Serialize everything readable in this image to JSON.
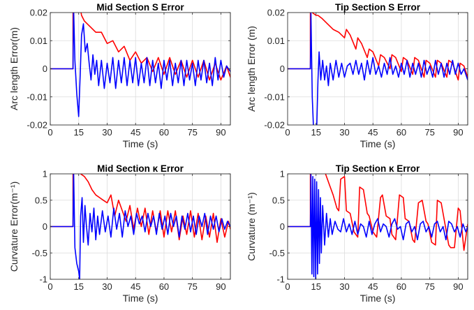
{
  "chart_data": [
    {
      "type": "line",
      "title": "Mid Section S Error",
      "xlabel": "Time (s)",
      "ylabel": "Arc length Error(m)",
      "xlim": [
        0,
        95
      ],
      "ylim": [
        -0.02,
        0.02
      ],
      "xticks": [
        0,
        15,
        30,
        45,
        60,
        75,
        90
      ],
      "yticks": [
        -0.02,
        -0.01,
        0,
        0.01,
        0.02
      ],
      "xtick_labels": [
        "0",
        "15",
        "30",
        "45",
        "60",
        "75",
        "90"
      ],
      "ytick_labels": [
        "-0.02",
        "-0.01",
        "0",
        "0.01",
        "0.02"
      ],
      "grid": true,
      "series": [
        {
          "color": "#ff0000",
          "x": [
            0,
            12,
            12,
            15,
            16.5,
            18,
            21,
            24,
            27,
            30,
            33,
            36,
            39,
            42,
            45,
            48,
            51,
            54,
            57,
            60,
            63,
            66,
            69,
            72,
            75,
            78,
            81,
            84,
            87,
            90,
            93,
            95
          ],
          "y": [
            0,
            0,
            0.03,
            0.025,
            0.019,
            0.017,
            0.015,
            0.013,
            0.013,
            0.009,
            0.01,
            0.006,
            0.008,
            0.003,
            0.006,
            0.002,
            0.004,
            -0.001,
            0.004,
            -0.002,
            0.004,
            -0.002,
            0.003,
            -0.003,
            0.003,
            -0.003,
            0.003,
            -0.004,
            0.002,
            -0.004,
            0.001,
            -0.003
          ]
        },
        {
          "color": "#0000ff",
          "x": [
            0,
            12,
            12.3,
            13,
            14,
            15,
            15.8,
            16.5,
            17.5,
            18.5,
            19.5,
            20.5,
            21.5,
            22.5,
            23.5,
            24.5,
            25.5,
            27,
            28.5,
            30,
            31.5,
            33,
            34.5,
            36,
            37.5,
            39,
            40.5,
            42,
            43.5,
            45,
            46.5,
            48,
            49.5,
            51,
            52.5,
            54,
            55.5,
            57,
            58.5,
            60,
            61.5,
            63,
            64.5,
            66,
            67.5,
            69,
            70.5,
            72,
            73.5,
            75,
            76.5,
            78,
            79.5,
            81,
            82.5,
            84,
            85.5,
            87,
            88.5,
            90,
            91.5,
            93,
            95
          ],
          "y": [
            0,
            0,
            0.022,
            0.003,
            -0.009,
            -0.017,
            -0.002,
            0.012,
            0.016,
            0.006,
            0.009,
            0.002,
            -0.004,
            0.005,
            -0.002,
            0.003,
            -0.006,
            0.003,
            -0.007,
            0.002,
            -0.005,
            0.004,
            -0.007,
            0.003,
            -0.005,
            0.004,
            -0.006,
            0.003,
            -0.005,
            0.004,
            -0.006,
            0.002,
            -0.005,
            0.004,
            -0.006,
            0.003,
            -0.005,
            0.002,
            -0.007,
            0.003,
            -0.004,
            0.003,
            -0.006,
            0.002,
            -0.005,
            0.003,
            -0.006,
            0.003,
            -0.004,
            0.002,
            -0.006,
            0.003,
            -0.004,
            0.003,
            -0.005,
            0.002,
            -0.006,
            0.004,
            -0.004,
            0.003,
            -0.003,
            0.001,
            -0.001
          ]
        }
      ]
    },
    {
      "type": "line",
      "title": "Tip Section S Error",
      "xlabel": "Time (s)",
      "ylabel": "Arc length Error (m)",
      "xlim": [
        0,
        95
      ],
      "ylim": [
        -0.02,
        0.02
      ],
      "xticks": [
        0,
        15,
        30,
        45,
        60,
        75,
        90
      ],
      "yticks": [
        -0.02,
        -0.01,
        0,
        0.01,
        0.02
      ],
      "xtick_labels": [
        "0",
        "15",
        "30",
        "45",
        "60",
        "75",
        "90"
      ],
      "ytick_labels": [
        "-0.02",
        "-0.01",
        "0",
        "0.01",
        "0.02"
      ],
      "grid": true,
      "series": [
        {
          "color": "#ff0000",
          "x": [
            0,
            12,
            12,
            13,
            15,
            16,
            18,
            21,
            24,
            27,
            30,
            31,
            33,
            36,
            37,
            39,
            42,
            43,
            45,
            48,
            49,
            51,
            54,
            55,
            57,
            60,
            61,
            63,
            66,
            67,
            69,
            72,
            73,
            75,
            78,
            79,
            81,
            84,
            85,
            87,
            90,
            91,
            93,
            95
          ],
          "y": [
            0,
            0,
            0.025,
            0.02,
            0.019,
            0.019,
            0.018,
            0.016,
            0.014,
            0.013,
            0.011,
            0.014,
            0.012,
            0.007,
            0.011,
            0.009,
            0.004,
            0.007,
            0.006,
            0.001,
            0.005,
            0.004,
            0.0,
            0.005,
            0.004,
            -0.001,
            0.004,
            0.003,
            -0.002,
            0.004,
            0.003,
            -0.003,
            0.003,
            0.002,
            -0.003,
            0.003,
            0.002,
            -0.003,
            0.003,
            0.002,
            -0.004,
            0.002,
            0.001,
            -0.003
          ]
        },
        {
          "color": "#0000ff",
          "x": [
            0,
            12,
            12.3,
            13,
            13.6,
            14.2,
            14.8,
            15.4,
            16,
            16.6,
            17.5,
            18.5,
            19.5,
            20.5,
            21.5,
            22.5,
            24,
            25.5,
            27,
            28.5,
            30,
            31.5,
            33,
            34.5,
            36,
            37.5,
            39,
            40.5,
            42,
            43.5,
            45,
            46.5,
            48,
            49.5,
            51,
            52.5,
            54,
            55.5,
            57,
            58.5,
            60,
            61.5,
            63,
            64.5,
            66,
            67.5,
            69,
            70.5,
            72,
            73.5,
            75,
            76.5,
            78,
            79.5,
            81,
            82.5,
            84,
            85.5,
            87,
            88.5,
            90,
            91.5,
            93,
            95
          ],
          "y": [
            0,
            0,
            0.02,
            -0.01,
            -0.02,
            -0.022,
            -0.021,
            -0.02,
            -0.004,
            0.006,
            -0.004,
            0.003,
            -0.004,
            0.001,
            -0.006,
            0.002,
            -0.004,
            0.003,
            -0.003,
            0.002,
            -0.003,
            0.001,
            0.002,
            -0.002,
            0.003,
            -0.002,
            0.002,
            -0.004,
            0.003,
            -0.002,
            0.004,
            -0.002,
            0.001,
            -0.003,
            0.002,
            -0.002,
            0.004,
            -0.002,
            0.001,
            -0.003,
            0.002,
            -0.002,
            0.003,
            -0.003,
            0.002,
            -0.002,
            0.002,
            -0.003,
            0.003,
            -0.002,
            0.001,
            -0.003,
            0.003,
            -0.002,
            0.002,
            -0.003,
            0.002,
            -0.002,
            0.003,
            -0.002,
            0.002,
            -0.002,
            0.0,
            -0.004
          ]
        }
      ]
    },
    {
      "type": "line",
      "title": "Mid Section κ Error",
      "xlabel": "Time (s)",
      "ylabel": "Curvature Error(m⁻¹)",
      "xlim": [
        0,
        95
      ],
      "ylim": [
        -1,
        1
      ],
      "xticks": [
        0,
        15,
        30,
        45,
        60,
        75,
        90
      ],
      "yticks": [
        -1,
        -0.5,
        0,
        0.5,
        1
      ],
      "xtick_labels": [
        "0",
        "15",
        "30",
        "45",
        "60",
        "75",
        "90"
      ],
      "ytick_labels": [
        "-1",
        "-0.5",
        "0",
        "0.5",
        "1"
      ],
      "grid": true,
      "series": [
        {
          "color": "#ff0000",
          "x": [
            0,
            12,
            12,
            15,
            16,
            18,
            20,
            22,
            24,
            26,
            28,
            30,
            32,
            34,
            36,
            38,
            40,
            42,
            44,
            46,
            48,
            50,
            52,
            54,
            56,
            58,
            60,
            62,
            64,
            66,
            68,
            70,
            72,
            74,
            76,
            78,
            80,
            82,
            84,
            86,
            88,
            90,
            92,
            94,
            95
          ],
          "y": [
            0,
            0,
            1.2,
            1.1,
            1.0,
            0.95,
            0.85,
            0.7,
            0.6,
            0.55,
            0.5,
            0.45,
            0.6,
            0.2,
            0.5,
            0.3,
            0.1,
            0.4,
            -0.05,
            0.35,
            0.0,
            0.35,
            -0.15,
            0.3,
            -0.1,
            0.3,
            -0.2,
            0.3,
            -0.1,
            0.3,
            -0.25,
            0.2,
            -0.15,
            0.3,
            -0.2,
            0.25,
            -0.25,
            0.2,
            -0.2,
            0.25,
            -0.3,
            0.15,
            -0.2,
            0.1,
            -0.05
          ]
        },
        {
          "color": "#0000ff",
          "x": [
            0,
            12,
            12.3,
            13,
            14,
            15,
            15.5,
            16,
            16.8,
            17.5,
            18.3,
            19,
            20,
            21,
            22,
            23,
            24,
            25,
            26,
            27.5,
            29,
            30.5,
            32,
            33.5,
            35,
            36.5,
            38,
            39.5,
            41,
            42.5,
            44,
            45.5,
            47,
            48.5,
            50,
            51.5,
            53,
            54.5,
            56,
            57.5,
            59,
            60.5,
            62,
            63.5,
            65,
            66.5,
            68,
            69.5,
            71,
            72.5,
            74,
            75.5,
            77,
            78.5,
            80,
            81.5,
            83,
            84.5,
            86,
            87.5,
            89,
            90.5,
            92,
            93.5,
            95
          ],
          "y": [
            0,
            0,
            1.1,
            -0.4,
            -0.7,
            -0.85,
            -1.0,
            0.2,
            0.55,
            -0.3,
            0.4,
            0.05,
            -0.35,
            0.25,
            -0.1,
            0.35,
            -0.25,
            0.2,
            -0.15,
            0.3,
            -0.1,
            0.2,
            -0.2,
            0.35,
            -0.05,
            0.25,
            -0.2,
            0.3,
            0.0,
            0.2,
            -0.15,
            0.25,
            0.05,
            0.2,
            -0.1,
            0.25,
            0.0,
            0.2,
            -0.15,
            0.25,
            -0.05,
            0.2,
            -0.15,
            0.25,
            0.0,
            0.2,
            -0.2,
            0.2,
            -0.05,
            0.25,
            -0.1,
            0.2,
            -0.15,
            0.2,
            0.0,
            0.25,
            -0.15,
            0.2,
            -0.05,
            0.2,
            -0.1,
            0.15,
            -0.05,
            0.1,
            0.0
          ]
        }
      ]
    },
    {
      "type": "line",
      "title": "Tip Section κ Error",
      "xlabel": "Time (s)",
      "ylabel": "Curvature (m⁻¹)",
      "xlim": [
        0,
        95
      ],
      "ylim": [
        -1,
        1
      ],
      "xticks": [
        0,
        15,
        30,
        45,
        60,
        75,
        90
      ],
      "yticks": [
        -1,
        -0.5,
        0,
        0.5,
        1
      ],
      "xtick_labels": [
        "0",
        "15",
        "30",
        "45",
        "60",
        "75",
        "90"
      ],
      "ytick_labels": [
        "-1",
        "-0.5",
        "0",
        "0.5",
        "1"
      ],
      "grid": true,
      "series": [
        {
          "color": "#ff0000",
          "x": [
            0,
            12,
            12,
            14,
            16,
            18,
            20,
            22,
            24,
            26,
            27,
            28,
            30,
            31,
            33,
            35,
            37,
            38,
            40,
            42,
            43,
            45,
            47,
            49,
            50,
            52,
            54,
            55,
            57,
            59,
            61,
            62,
            64,
            66,
            67,
            69,
            71,
            73,
            74,
            76,
            78,
            79,
            81,
            83,
            85,
            86,
            88,
            90,
            91,
            93,
            95
          ],
          "y": [
            0,
            0,
            1.3,
            1.3,
            1.25,
            1.15,
            1.0,
            0.8,
            0.6,
            0.35,
            0.3,
            0.9,
            0.95,
            0.3,
            0.25,
            -0.1,
            -0.2,
            0.75,
            0.7,
            0.25,
            0.2,
            -0.1,
            -0.2,
            0.55,
            0.6,
            0.2,
            0.15,
            -0.15,
            -0.25,
            0.6,
            0.55,
            0.15,
            0.1,
            -0.25,
            -0.3,
            0.45,
            0.5,
            0.1,
            0.05,
            -0.3,
            -0.35,
            0.5,
            0.45,
            0.05,
            -0.35,
            -0.4,
            -0.4,
            0.35,
            0.3,
            -0.45,
            0.05
          ]
        },
        {
          "color": "#0000ff",
          "x": [
            0,
            12,
            12.3,
            12.8,
            13.3,
            13.8,
            14.3,
            14.8,
            15.3,
            15.8,
            16.3,
            16.8,
            17.3,
            17.8,
            18.5,
            19.5,
            20.5,
            21.5,
            22.5,
            23.5,
            25,
            26.5,
            28,
            29.5,
            31,
            32.5,
            34,
            35.5,
            37,
            38.5,
            40,
            41.5,
            43,
            44.5,
            46,
            47.5,
            49,
            50.5,
            52,
            53.5,
            55,
            56.5,
            58,
            59.5,
            61,
            62.5,
            64,
            65.5,
            67,
            68.5,
            70,
            71.5,
            73,
            74.5,
            76,
            77.5,
            79,
            80.5,
            82,
            83.5,
            85,
            86.5,
            88,
            89.5,
            91,
            92.5,
            94,
            95
          ],
          "y": [
            0,
            0,
            1.0,
            -0.9,
            0.95,
            -0.95,
            0.9,
            -1.0,
            0.85,
            -0.9,
            0.7,
            -0.7,
            0.55,
            -0.5,
            0.4,
            -0.35,
            0.25,
            -0.2,
            0.15,
            -0.15,
            0.1,
            -0.05,
            -0.1,
            0.15,
            -0.1,
            0.05,
            -0.15,
            0.1,
            -0.15,
            0.05,
            0.0,
            -0.2,
            0.1,
            -0.15,
            0.05,
            0.15,
            -0.1,
            0.05,
            0.0,
            -0.2,
            0.05,
            0.15,
            -0.05,
            0.0,
            -0.25,
            0.05,
            0.1,
            -0.1,
            0.0,
            -0.25,
            0.05,
            0.1,
            -0.1,
            0.0,
            -0.2,
            0.05,
            0.1,
            -0.1,
            0.0,
            -0.25,
            0.1,
            0.05,
            -0.1,
            0.0,
            -0.2,
            0.05,
            -0.1,
            0.0
          ]
        }
      ]
    }
  ]
}
